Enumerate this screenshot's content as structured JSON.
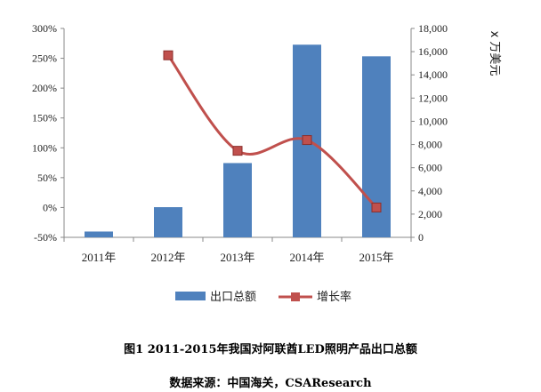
{
  "chart_data": {
    "type": "bar",
    "categories": [
      "2011年",
      "2012年",
      "2013年",
      "2014年",
      "2015年"
    ],
    "series": [
      {
        "name": "出口总额",
        "type": "bar",
        "axis": "right",
        "color": "#4f81bd",
        "values": [
          500,
          2600,
          6400,
          16600,
          15600
        ]
      },
      {
        "name": "增长率",
        "type": "line",
        "axis": "left",
        "color": "#c0504d",
        "values": [
          null,
          2.55,
          0.95,
          1.13,
          0.0
        ]
      }
    ],
    "y_left": {
      "ylim": [
        -0.5,
        3.0
      ],
      "ticks": [
        "-50%",
        "0%",
        "50%",
        "100%",
        "150%",
        "200%",
        "250%",
        "300%"
      ]
    },
    "y_right": {
      "ylim": [
        0,
        18000
      ],
      "ticks": [
        "0",
        "2,000",
        "4,000",
        "6,000",
        "8,000",
        "10,000",
        "12,000",
        "14,000",
        "16,000",
        "18,000"
      ],
      "unit": "x 万美元"
    },
    "legend_position": "bottom",
    "grid": false
  },
  "caption": {
    "title": "图1  2011-2015年我国对阿联酋LED照明产品出口总额",
    "source": "数据来源：中国海关，CSAResearch"
  }
}
